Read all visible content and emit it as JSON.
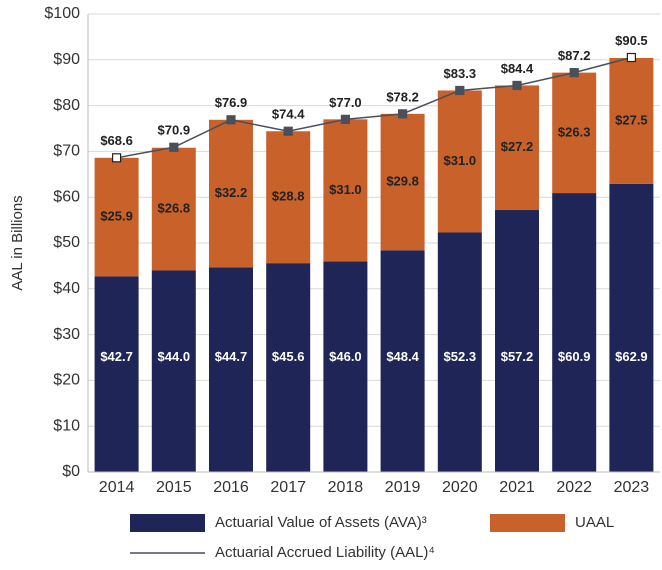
{
  "chart_data": {
    "type": "bar",
    "stacked": true,
    "y_label": "AAL in Billions",
    "categories": [
      "2014",
      "2015",
      "2016",
      "2017",
      "2018",
      "2019",
      "2020",
      "2021",
      "2022",
      "2023"
    ],
    "series": [
      {
        "name": "Actuarial Value of Assets (AVA)³",
        "color": "#1f2556",
        "values": [
          42.7,
          44.0,
          44.7,
          45.6,
          46.0,
          48.4,
          52.3,
          57.2,
          60.9,
          62.9
        ],
        "value_labels": [
          "$42.7",
          "$44.0",
          "$44.7",
          "$45.6",
          "$46.0",
          "$48.4",
          "$52.3",
          "$57.2",
          "$60.9",
          "$62.9"
        ]
      },
      {
        "name": "UAAL",
        "color": "#c8612a",
        "values": [
          25.9,
          26.8,
          32.2,
          28.8,
          31.0,
          29.8,
          31.0,
          27.2,
          26.3,
          27.5
        ],
        "value_labels": [
          "$25.9",
          "$26.8",
          "$32.2",
          "$28.8",
          "$31.0",
          "$29.8",
          "$31.0",
          "$27.2",
          "$26.3",
          "$27.5"
        ]
      },
      {
        "name": "Actuarial Accrued Liability (AAL)⁴",
        "color": "#4a4f5a",
        "type": "line",
        "values": [
          68.6,
          70.9,
          76.9,
          74.4,
          77.0,
          78.2,
          83.3,
          84.4,
          87.2,
          90.5
        ],
        "value_labels": [
          "$68.6",
          "$70.9",
          "$76.9",
          "$74.4",
          "$77.0",
          "$78.2",
          "$83.3",
          "$84.4",
          "$87.2",
          "$90.5"
        ]
      }
    ],
    "ylim": [
      0,
      100
    ],
    "yticks": [
      {
        "value": 0,
        "label": "$0"
      },
      {
        "value": 10,
        "label": "$10"
      },
      {
        "value": 20,
        "label": "$20"
      },
      {
        "value": 30,
        "label": "$30"
      },
      {
        "value": 40,
        "label": "$40"
      },
      {
        "value": 50,
        "label": "$50"
      },
      {
        "value": 60,
        "label": "$60"
      },
      {
        "value": 70,
        "label": "$70"
      },
      {
        "value": 80,
        "label": "$80"
      },
      {
        "value": 90,
        "label": "$90"
      },
      {
        "value": 100,
        "label": "$100"
      }
    ],
    "grid": true,
    "legend": "bottom"
  }
}
